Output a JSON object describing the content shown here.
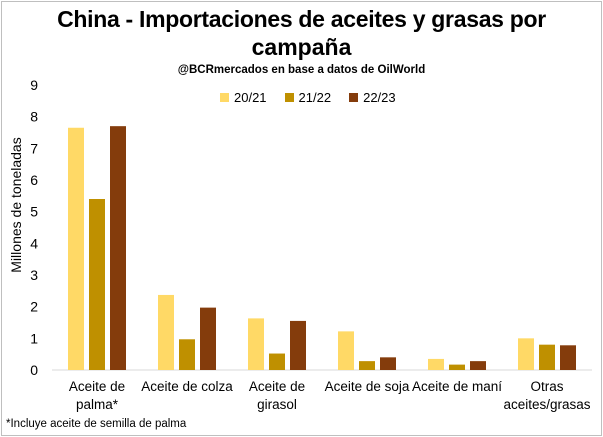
{
  "chart_data": {
    "type": "bar",
    "title": "China  - Importaciones de aceites y grasas por campaña",
    "subtitle": "@BCRmercados en base a datos de OilWorld",
    "ylabel": "Millones de toneladas",
    "ylim": [
      0,
      9
    ],
    "yticks": [
      0,
      1,
      2,
      3,
      4,
      5,
      6,
      7,
      8,
      9
    ],
    "categories": [
      [
        "Aceite de",
        "palma*"
      ],
      [
        "Aceite de colza"
      ],
      [
        "Aceite de",
        "girasol"
      ],
      [
        "Aceite de soja"
      ],
      [
        "Aceite de maní"
      ],
      [
        "Otras",
        "aceites/grasas"
      ]
    ],
    "series": [
      {
        "name": "20/21",
        "color": "#ffd966",
        "values": [
          7.65,
          2.37,
          1.63,
          1.22,
          0.35,
          1.0
        ]
      },
      {
        "name": "21/22",
        "color": "#bf9000",
        "values": [
          5.4,
          0.97,
          0.52,
          0.28,
          0.17,
          0.8
        ]
      },
      {
        "name": "22/23",
        "color": "#843c0c",
        "values": [
          7.7,
          1.97,
          1.55,
          0.4,
          0.28,
          0.78
        ]
      }
    ],
    "grid": false,
    "legend": "top-center"
  },
  "footnote": "*Incluye aceite de semilla de palma"
}
